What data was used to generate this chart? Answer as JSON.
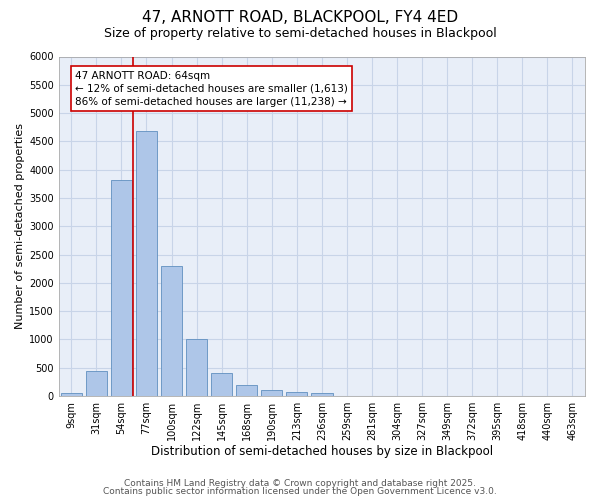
{
  "title1": "47, ARNOTT ROAD, BLACKPOOL, FY4 4ED",
  "title2": "Size of property relative to semi-detached houses in Blackpool",
  "xlabel": "Distribution of semi-detached houses by size in Blackpool",
  "ylabel": "Number of semi-detached properties",
  "categories": [
    "9sqm",
    "31sqm",
    "54sqm",
    "77sqm",
    "100sqm",
    "122sqm",
    "145sqm",
    "168sqm",
    "190sqm",
    "213sqm",
    "236sqm",
    "259sqm",
    "281sqm",
    "304sqm",
    "327sqm",
    "349sqm",
    "372sqm",
    "395sqm",
    "418sqm",
    "440sqm",
    "463sqm"
  ],
  "values": [
    50,
    440,
    3820,
    4680,
    2300,
    1000,
    410,
    200,
    100,
    70,
    60,
    0,
    0,
    0,
    0,
    0,
    0,
    0,
    0,
    0,
    0
  ],
  "bar_color": "#aec6e8",
  "bar_edge_color": "#6090c0",
  "grid_color": "#c8d4e8",
  "background_color": "#e8eef8",
  "vline_pos": 2.45,
  "vline_color": "#cc0000",
  "annotation_line1": "47 ARNOTT ROAD: 64sqm",
  "annotation_line2": "← 12% of semi-detached houses are smaller (1,613)",
  "annotation_line3": "86% of semi-detached houses are larger (11,238) →",
  "annotation_box_color": "#cc0000",
  "ylim": [
    0,
    6000
  ],
  "yticks": [
    0,
    500,
    1000,
    1500,
    2000,
    2500,
    3000,
    3500,
    4000,
    4500,
    5000,
    5500,
    6000
  ],
  "footer1": "Contains HM Land Registry data © Crown copyright and database right 2025.",
  "footer2": "Contains public sector information licensed under the Open Government Licence v3.0.",
  "title1_fontsize": 11,
  "title2_fontsize": 9,
  "xlabel_fontsize": 8.5,
  "ylabel_fontsize": 8,
  "tick_fontsize": 7,
  "footer_fontsize": 6.5,
  "annotation_fontsize": 7.5
}
